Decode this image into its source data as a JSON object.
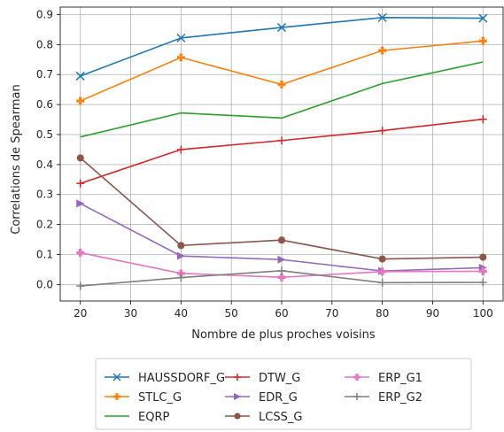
{
  "chart_data": {
    "type": "line",
    "title": "",
    "xlabel": "Nombre de plus proches voisins",
    "ylabel": "Correlations de Spearman",
    "x": [
      20,
      40,
      60,
      80,
      100
    ],
    "xlim": [
      16,
      104
    ],
    "ylim": [
      -0.055,
      0.925
    ],
    "xticks": [
      20,
      30,
      40,
      50,
      60,
      70,
      80,
      90,
      100
    ],
    "yticks": [
      0.0,
      0.1,
      0.2,
      0.3,
      0.4,
      0.5,
      0.6,
      0.7,
      0.8,
      0.9
    ],
    "grid": true,
    "legend_placement": "bottom-center",
    "series": [
      {
        "name": "HAUSSDORF_G",
        "color": "#1f77b4",
        "marker": "x",
        "values": [
          0.695,
          0.822,
          0.857,
          0.89,
          0.888
        ]
      },
      {
        "name": "STLC_G",
        "color": "#ff7f0e",
        "marker": "X",
        "values": [
          0.612,
          0.757,
          0.667,
          0.78,
          0.812
        ]
      },
      {
        "name": "EQRP",
        "color": "#2ca02c",
        "marker": "none",
        "values": [
          0.492,
          0.572,
          0.555,
          0.67,
          0.742
        ]
      },
      {
        "name": "DTW_G",
        "color": "#d62728",
        "marker": "+",
        "values": [
          0.337,
          0.45,
          0.48,
          0.513,
          0.551
        ]
      },
      {
        "name": "EDR_G",
        "color": "#9467bd",
        "marker": ">",
        "values": [
          0.27,
          0.095,
          0.083,
          0.045,
          0.056
        ]
      },
      {
        "name": "LCSS_G",
        "color": "#8c564b",
        "marker": "o",
        "values": [
          0.422,
          0.13,
          0.148,
          0.085,
          0.091
        ]
      },
      {
        "name": "ERP_G1",
        "color": "#e377c2",
        "marker": "P",
        "values": [
          0.106,
          0.037,
          0.024,
          0.043,
          0.044
        ]
      },
      {
        "name": "ERP_G2",
        "color": "#7f7f7f",
        "marker": "+",
        "values": [
          -0.005,
          0.023,
          0.046,
          0.006,
          0.007
        ]
      }
    ]
  }
}
